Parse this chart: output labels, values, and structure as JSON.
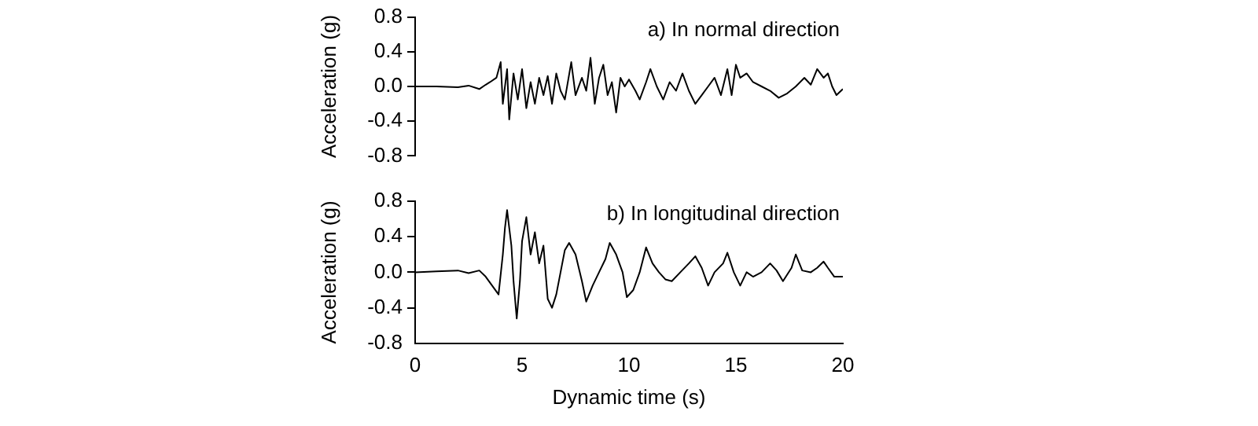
{
  "chart_data": [
    {
      "type": "line",
      "ylabel": "Acceleration (g)",
      "annotations": [
        "a) In normal direction"
      ],
      "xlim": [
        0,
        20
      ],
      "ylim": [
        -0.8,
        0.8
      ],
      "yticks": [
        -0.8,
        -0.4,
        {
          "value": 0,
          "label": "0.0"
        },
        0.4,
        0.8
      ],
      "tick_labels": "y",
      "grid": false,
      "marker": "none",
      "line_style": "solid",
      "series": [
        {
          "color": "#000000",
          "x": [
            0,
            1,
            2,
            2.5,
            3,
            3.3,
            3.5,
            3.8,
            4.0,
            4.1,
            4.3,
            4.4,
            4.6,
            4.8,
            5.0,
            5.2,
            5.4,
            5.6,
            5.8,
            6.0,
            6.2,
            6.4,
            6.6,
            6.8,
            7.0,
            7.3,
            7.5,
            7.8,
            8.0,
            8.2,
            8.4,
            8.6,
            8.8,
            9.0,
            9.2,
            9.4,
            9.6,
            9.8,
            10,
            10.3,
            10.5,
            10.8,
            11.0,
            11.3,
            11.6,
            11.9,
            12.2,
            12.5,
            12.8,
            13.1,
            13.4,
            13.7,
            14.0,
            14.3,
            14.6,
            14.8,
            15.0,
            15.2,
            15.5,
            15.8,
            16.2,
            16.6,
            17.0,
            17.4,
            17.8,
            18.2,
            18.5,
            18.8,
            19.1,
            19.3,
            19.5,
            19.7,
            20
          ],
          "values": [
            0,
            0,
            -0.01,
            0.01,
            -0.03,
            0.02,
            0.05,
            0.1,
            0.28,
            -0.2,
            0.2,
            -0.38,
            0.15,
            -0.15,
            0.2,
            -0.25,
            0.05,
            -0.2,
            0.1,
            -0.1,
            0.12,
            -0.2,
            0.15,
            -0.05,
            -0.15,
            0.28,
            -0.1,
            0.1,
            -0.05,
            0.33,
            -0.2,
            0.1,
            0.25,
            -0.1,
            0.05,
            -0.3,
            0.1,
            0.0,
            0.08,
            -0.05,
            -0.15,
            0.05,
            0.2,
            0.0,
            -0.15,
            0.05,
            -0.05,
            0.15,
            -0.05,
            -0.2,
            -0.1,
            0.0,
            0.1,
            -0.1,
            0.2,
            -0.1,
            0.25,
            0.1,
            0.15,
            0.05,
            0.0,
            -0.05,
            -0.13,
            -0.08,
            0.0,
            0.1,
            0.02,
            0.2,
            0.1,
            0.15,
            0.0,
            -0.1,
            -0.03
          ]
        }
      ]
    },
    {
      "type": "line",
      "xlabel": "Dynamic time (s)",
      "ylabel": "Acceleration (g)",
      "annotations": [
        "b) In longitudinal direction"
      ],
      "xlim": [
        0,
        20
      ],
      "xticks": [
        0,
        5,
        10,
        15,
        20
      ],
      "ylim": [
        -0.8,
        0.8
      ],
      "yticks": [
        -0.8,
        -0.4,
        {
          "value": 0,
          "label": "0.0"
        },
        0.4,
        0.8
      ],
      "grid": false,
      "marker": "none",
      "line_style": "solid",
      "series": [
        {
          "color": "#000000",
          "x": [
            0,
            1,
            2,
            2.5,
            3,
            3.3,
            3.6,
            3.9,
            4.1,
            4.2,
            4.3,
            4.5,
            4.6,
            4.75,
            4.9,
            5.0,
            5.2,
            5.4,
            5.6,
            5.8,
            6.0,
            6.2,
            6.4,
            6.6,
            6.8,
            7.0,
            7.2,
            7.5,
            7.8,
            8.0,
            8.3,
            8.6,
            8.9,
            9.1,
            9.4,
            9.7,
            9.9,
            10.2,
            10.5,
            10.8,
            11.1,
            11.4,
            11.7,
            12.0,
            12.4,
            12.8,
            13.1,
            13.4,
            13.7,
            14.0,
            14.4,
            14.6,
            14.9,
            15.2,
            15.5,
            15.8,
            16.2,
            16.6,
            16.9,
            17.2,
            17.6,
            17.8,
            18.1,
            18.5,
            18.8,
            19.1,
            19.3,
            19.6,
            20
          ],
          "values": [
            0,
            0.01,
            0.02,
            -0.01,
            0.02,
            -0.05,
            -0.15,
            -0.25,
            0.2,
            0.5,
            0.7,
            0.3,
            -0.1,
            -0.52,
            -0.1,
            0.35,
            0.62,
            0.2,
            0.45,
            0.1,
            0.3,
            -0.3,
            -0.4,
            -0.25,
            0.0,
            0.25,
            0.33,
            0.2,
            -0.1,
            -0.33,
            -0.15,
            0.0,
            0.15,
            0.33,
            0.2,
            0.0,
            -0.28,
            -0.2,
            0.0,
            0.28,
            0.1,
            0.0,
            -0.08,
            -0.1,
            0.0,
            0.1,
            0.18,
            0.05,
            -0.15,
            0.0,
            0.1,
            0.22,
            0.0,
            -0.15,
            0.0,
            -0.05,
            0.0,
            0.1,
            0.02,
            -0.1,
            0.05,
            0.2,
            0.02,
            0.0,
            0.05,
            0.12,
            0.05,
            -0.05,
            -0.05
          ]
        }
      ]
    }
  ]
}
